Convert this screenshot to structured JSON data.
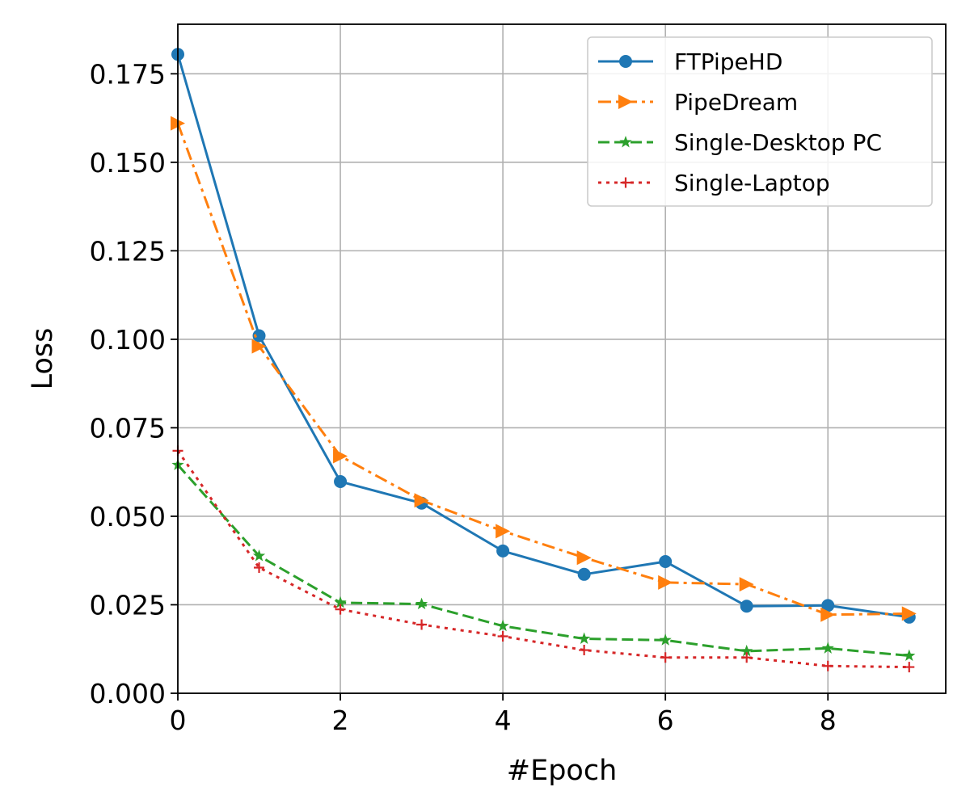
{
  "chart_data": {
    "type": "line",
    "title": "",
    "xlabel": "#Epoch",
    "ylabel": "Loss",
    "xlim": [
      0,
      9.45
    ],
    "ylim": [
      0,
      0.189
    ],
    "xticks": [
      0,
      2,
      4,
      6,
      8
    ],
    "xtick_labels": [
      "0",
      "2",
      "4",
      "6",
      "8"
    ],
    "yticks": [
      0,
      0.025,
      0.05,
      0.075,
      0.1,
      0.125,
      0.15,
      0.175
    ],
    "ytick_labels": [
      "0.000",
      "0.025",
      "0.050",
      "0.075",
      "0.100",
      "0.125",
      "0.150",
      "0.175"
    ],
    "grid": true,
    "legend_position": "top-right",
    "x": [
      0,
      1,
      2,
      3,
      4,
      5,
      6,
      7,
      8,
      9
    ],
    "series": [
      {
        "name": "FTPipeHD",
        "color": "#1f77b4",
        "line_style": "solid",
        "marker": "circle",
        "values": [
          0.1805,
          0.101,
          0.0598,
          0.0537,
          0.0402,
          0.0336,
          0.0372,
          0.0246,
          0.0248,
          0.0215
        ]
      },
      {
        "name": "PipeDream",
        "color": "#ff7f0e",
        "line_style": "dashdot",
        "marker": "triangle-right",
        "values": [
          0.161,
          0.098,
          0.067,
          0.0545,
          0.0458,
          0.0383,
          0.0313,
          0.0308,
          0.0222,
          0.0225
        ]
      },
      {
        "name": "Single-Desktop PC",
        "color": "#2ca02c",
        "line_style": "dashed",
        "marker": "star",
        "values": [
          0.0645,
          0.0388,
          0.0256,
          0.0252,
          0.019,
          0.0154,
          0.015,
          0.0119,
          0.0127,
          0.0106
        ]
      },
      {
        "name": "Single-Laptop",
        "color": "#d62728",
        "line_style": "dotted",
        "marker": "plus",
        "values": [
          0.0685,
          0.0355,
          0.0237,
          0.0194,
          0.0161,
          0.0122,
          0.0101,
          0.0101,
          0.0077,
          0.0074
        ]
      }
    ]
  }
}
